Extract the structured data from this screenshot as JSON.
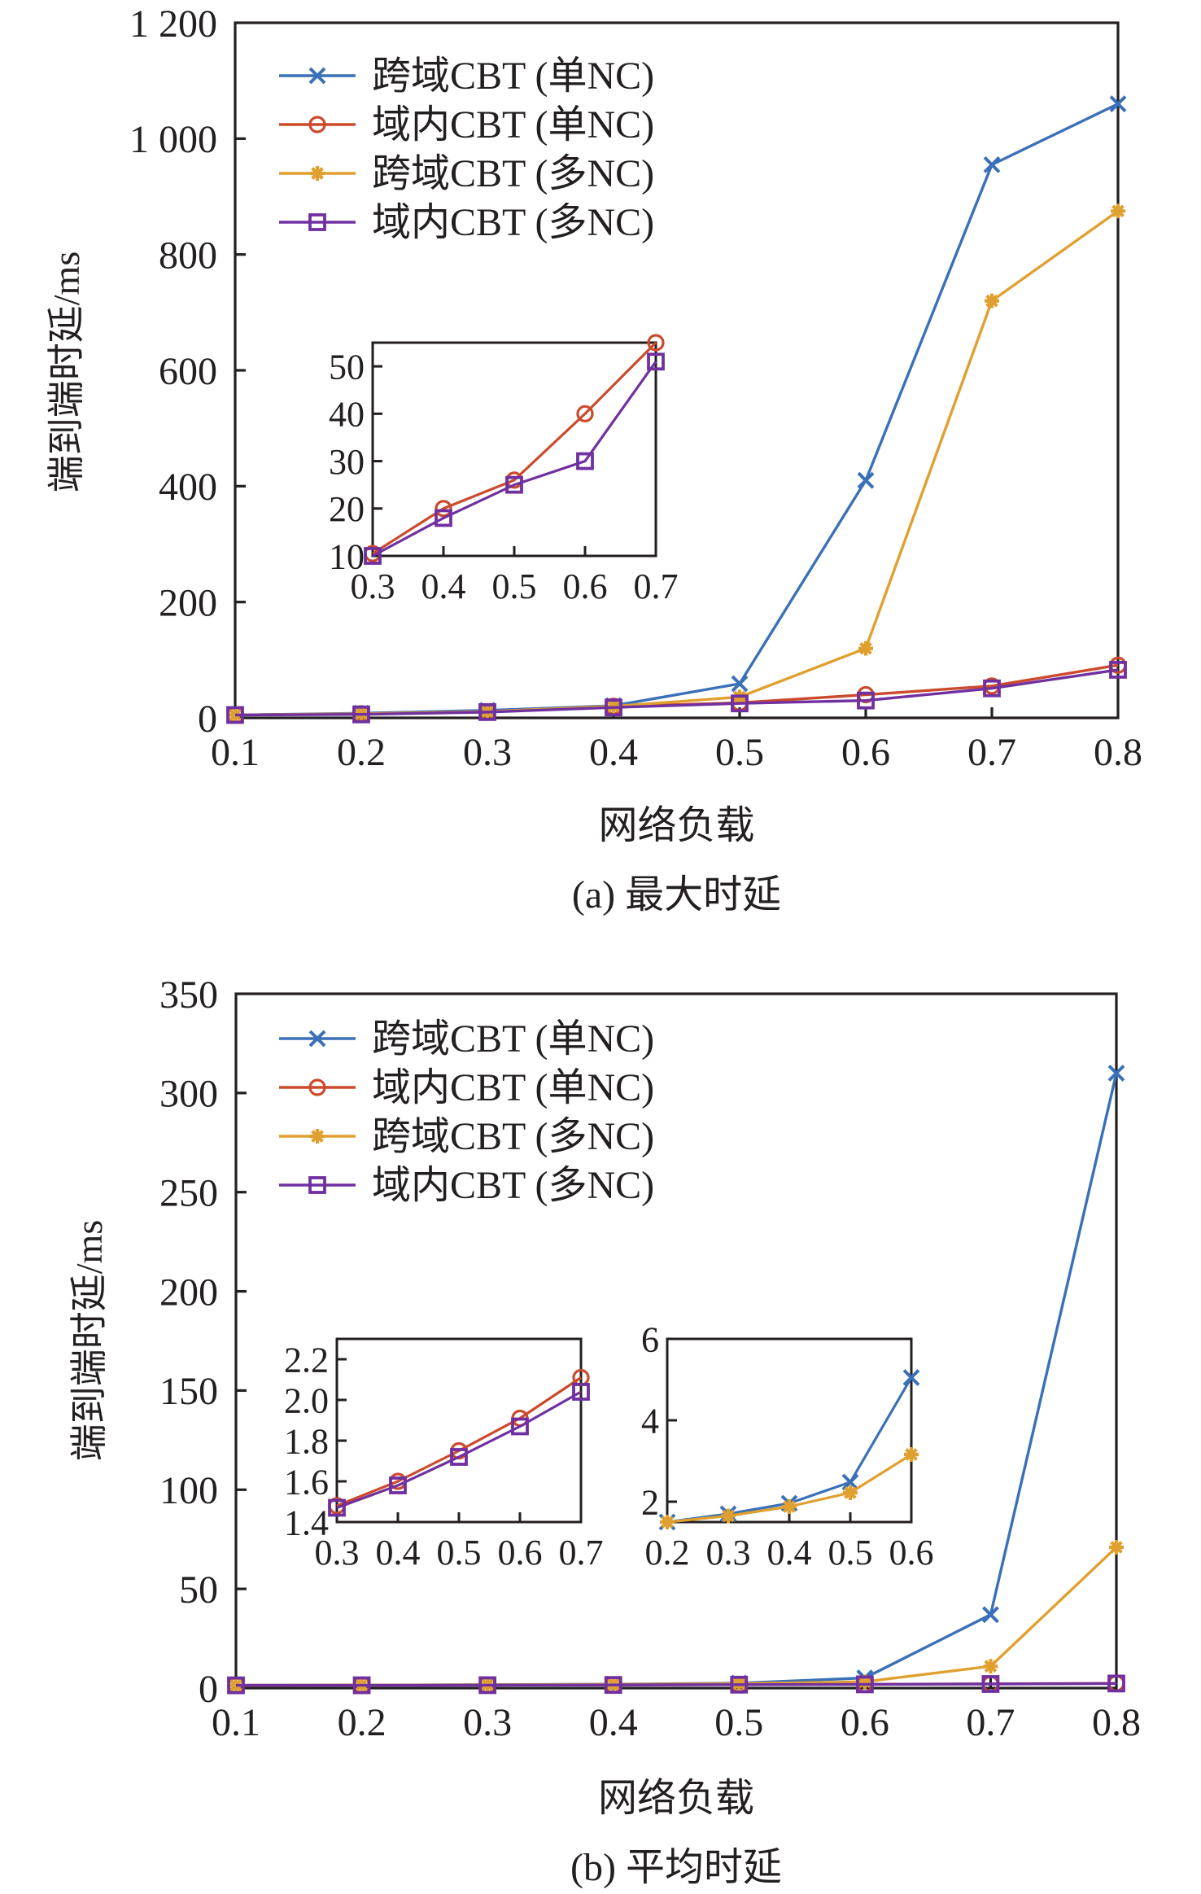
{
  "chart_data": [
    {
      "id": "a",
      "type": "line",
      "caption": "(a) 最大时延",
      "xlabel": "网络负载",
      "ylabel": "端到端时延/ms",
      "x": [
        0.1,
        0.2,
        0.3,
        0.4,
        0.5,
        0.6,
        0.7,
        0.8
      ],
      "xticks": [
        "0.1",
        "0.2",
        "0.3",
        "0.4",
        "0.5",
        "0.6",
        "0.7",
        "0.8"
      ],
      "xlim": [
        0.1,
        0.8
      ],
      "ylim": [
        0,
        1200
      ],
      "yticks": [
        0,
        200,
        400,
        600,
        800,
        1000,
        1200
      ],
      "ytick_labels": [
        "0",
        "200",
        "400",
        "600",
        "800",
        "1 000",
        "1 200"
      ],
      "legend_position": "top-left",
      "grid": false,
      "series": [
        {
          "name": "跨域CBT (单NC)",
          "color": "#3a70b8",
          "marker": "x",
          "values": [
            5,
            8,
            13,
            21,
            59,
            410,
            955,
            1060
          ]
        },
        {
          "name": "域内CBT (单NC)",
          "color": "#cc4a2c",
          "marker": "circle",
          "values": [
            5,
            7,
            10.5,
            20,
            26,
            40,
            55,
            91
          ]
        },
        {
          "name": "跨域CBT (多NC)",
          "color": "#e0a030",
          "marker": "star",
          "values": [
            5,
            7,
            11,
            20,
            36,
            120,
            720,
            875
          ]
        },
        {
          "name": "域内CBT (多NC)",
          "color": "#7030a0",
          "marker": "square",
          "values": [
            5,
            6,
            10,
            18,
            25,
            30,
            51,
            83
          ]
        }
      ],
      "insets": [
        {
          "x": [
            0.3,
            0.4,
            0.5,
            0.6,
            0.7
          ],
          "xticks": [
            "0.3",
            "0.4",
            "0.5",
            "0.6",
            "0.7"
          ],
          "xlim": [
            0.3,
            0.7
          ],
          "ylim": [
            10,
            55
          ],
          "yticks": [
            10,
            20,
            30,
            40,
            50
          ],
          "ytick_labels": [
            "10",
            "20",
            "30",
            "40",
            "50"
          ],
          "series": [
            {
              "name": "域内CBT (单NC)",
              "color": "#cc4a2c",
              "marker": "circle",
              "values": [
                10.5,
                20,
                26,
                40,
                55
              ]
            },
            {
              "name": "域内CBT (多NC)",
              "color": "#7030a0",
              "marker": "square",
              "values": [
                10,
                18,
                25,
                30,
                51
              ]
            }
          ]
        }
      ]
    },
    {
      "id": "b",
      "type": "line",
      "caption": "(b) 平均时延",
      "xlabel": "网络负载",
      "ylabel": "端到端时延/ms",
      "x": [
        0.1,
        0.2,
        0.3,
        0.4,
        0.5,
        0.6,
        0.7,
        0.8
      ],
      "xticks": [
        "0.1",
        "0.2",
        "0.3",
        "0.4",
        "0.5",
        "0.6",
        "0.7",
        "0.8"
      ],
      "xlim": [
        0.1,
        0.8
      ],
      "ylim": [
        0,
        350
      ],
      "yticks": [
        0,
        50,
        100,
        150,
        200,
        250,
        300,
        350
      ],
      "ytick_labels": [
        "0",
        "50",
        "100",
        "150",
        "200",
        "250",
        "300",
        "350"
      ],
      "legend_position": "top-left",
      "grid": false,
      "series": [
        {
          "name": "跨域CBT (单NC)",
          "color": "#3a70b8",
          "marker": "x",
          "values": [
            1.4,
            1.5,
            1.7,
            1.95,
            2.5,
            5.1,
            37,
            310
          ]
        },
        {
          "name": "域内CBT (单NC)",
          "color": "#cc4a2c",
          "marker": "circle",
          "values": [
            1.4,
            1.45,
            1.5,
            1.6,
            1.75,
            1.9,
            2.11,
            2.4
          ]
        },
        {
          "name": "跨域CBT (多NC)",
          "color": "#e0a030",
          "marker": "star",
          "values": [
            1.4,
            1.5,
            1.65,
            1.85,
            2.25,
            3.2,
            11,
            71
          ]
        },
        {
          "name": "域内CBT (多NC)",
          "color": "#7030a0",
          "marker": "square",
          "values": [
            1.4,
            1.42,
            1.47,
            1.58,
            1.72,
            1.87,
            2.05,
            2.3
          ]
        }
      ],
      "insets": [
        {
          "x": [
            0.3,
            0.4,
            0.5,
            0.6,
            0.7
          ],
          "xticks": [
            "0.3",
            "0.4",
            "0.5",
            "0.6",
            "0.7"
          ],
          "xlim": [
            0.3,
            0.7
          ],
          "ylim": [
            1.4,
            2.3
          ],
          "yticks": [
            1.4,
            1.6,
            1.8,
            2.0,
            2.2
          ],
          "ytick_labels": [
            "1.4",
            "1.6",
            "1.8",
            "2.0",
            "2.2"
          ],
          "series": [
            {
              "name": "域内CBT (单NC)",
              "color": "#cc4a2c",
              "marker": "circle",
              "values": [
                1.48,
                1.6,
                1.75,
                1.91,
                2.11
              ]
            },
            {
              "name": "域内CBT (多NC)",
              "color": "#7030a0",
              "marker": "square",
              "values": [
                1.47,
                1.58,
                1.72,
                1.87,
                2.04
              ]
            }
          ]
        },
        {
          "x": [
            0.2,
            0.3,
            0.4,
            0.5,
            0.6
          ],
          "xticks": [
            "0.2",
            "0.3",
            "0.4",
            "0.5",
            "0.6"
          ],
          "xlim": [
            0.2,
            0.6
          ],
          "ylim": [
            1.5,
            6
          ],
          "yticks": [
            2,
            4,
            6
          ],
          "ytick_labels": [
            "2",
            "4",
            "6"
          ],
          "series": [
            {
              "name": "跨域CBT (单NC)",
              "color": "#3a70b8",
              "marker": "x",
              "values": [
                1.5,
                1.7,
                1.96,
                2.48,
                5.05
              ]
            },
            {
              "name": "跨域CBT (多NC)",
              "color": "#e0a030",
              "marker": "star",
              "values": [
                1.5,
                1.65,
                1.88,
                2.22,
                3.16
              ]
            }
          ]
        }
      ]
    }
  ]
}
